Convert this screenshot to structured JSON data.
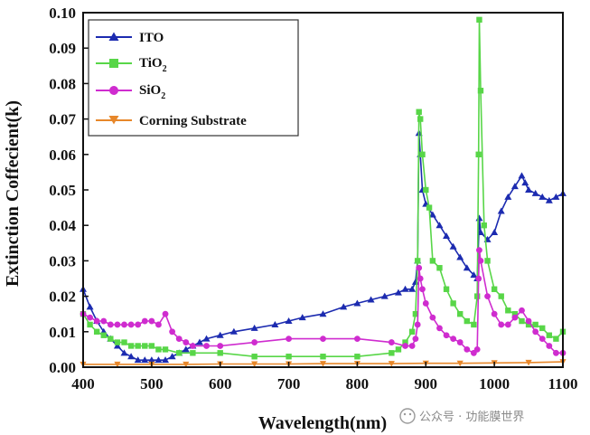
{
  "watermark": "公众号 · 功能膜世界",
  "chart_data": {
    "type": "line",
    "title": "",
    "xlabel": "Wavelength(nm)",
    "ylabel": "Extinction Coffecient(k)",
    "xlim": [
      400,
      1100
    ],
    "ylim": [
      0,
      0.1
    ],
    "xticks": [
      400,
      500,
      600,
      700,
      800,
      900,
      1000,
      1100
    ],
    "yticks": [
      0.0,
      0.01,
      0.02,
      0.03,
      0.04,
      0.05,
      0.06,
      0.07,
      0.08,
      0.09,
      0.1
    ],
    "ytick_labels": [
      "0.00",
      "0.01",
      "0.02",
      "0.03",
      "0.04",
      "0.05",
      "0.06",
      "0.07",
      "0.08",
      "0.09",
      "0.10"
    ],
    "legend_position": "top-left",
    "series": [
      {
        "name": "ITO",
        "label_main": "ITO",
        "label_sub": "",
        "color": "#1c2bb0",
        "marker": "triangle-up",
        "x": [
          400,
          410,
          420,
          430,
          440,
          450,
          460,
          470,
          480,
          490,
          500,
          510,
          520,
          530,
          540,
          550,
          560,
          570,
          580,
          600,
          620,
          650,
          680,
          700,
          720,
          750,
          780,
          800,
          820,
          840,
          860,
          870,
          880,
          885,
          888,
          890,
          892,
          895,
          900,
          910,
          920,
          930,
          940,
          950,
          960,
          970,
          975,
          978,
          980,
          990,
          1000,
          1010,
          1020,
          1030,
          1040,
          1045,
          1050,
          1060,
          1070,
          1080,
          1090,
          1100
        ],
        "y": [
          0.022,
          0.017,
          0.013,
          0.01,
          0.008,
          0.006,
          0.004,
          0.003,
          0.002,
          0.002,
          0.002,
          0.002,
          0.002,
          0.003,
          0.004,
          0.005,
          0.006,
          0.007,
          0.008,
          0.009,
          0.01,
          0.011,
          0.012,
          0.013,
          0.014,
          0.015,
          0.017,
          0.018,
          0.019,
          0.02,
          0.021,
          0.022,
          0.022,
          0.024,
          0.03,
          0.066,
          0.06,
          0.05,
          0.046,
          0.043,
          0.04,
          0.037,
          0.034,
          0.031,
          0.028,
          0.026,
          0.025,
          0.042,
          0.038,
          0.036,
          0.038,
          0.044,
          0.048,
          0.051,
          0.054,
          0.052,
          0.05,
          0.049,
          0.048,
          0.047,
          0.048,
          0.049
        ]
      },
      {
        "name": "TiO2",
        "label_main": "TiO",
        "label_sub": "2",
        "color": "#58d648",
        "marker": "square",
        "x": [
          400,
          410,
          420,
          430,
          440,
          450,
          460,
          470,
          480,
          490,
          500,
          510,
          520,
          540,
          560,
          600,
          650,
          700,
          750,
          800,
          850,
          860,
          870,
          880,
          885,
          888,
          890,
          892,
          895,
          900,
          905,
          910,
          920,
          930,
          940,
          950,
          960,
          970,
          975,
          977,
          978,
          980,
          985,
          990,
          1000,
          1010,
          1020,
          1030,
          1040,
          1050,
          1060,
          1070,
          1080,
          1090,
          1100
        ],
        "y": [
          0.015,
          0.012,
          0.01,
          0.009,
          0.008,
          0.007,
          0.007,
          0.006,
          0.006,
          0.006,
          0.006,
          0.005,
          0.005,
          0.004,
          0.004,
          0.004,
          0.003,
          0.003,
          0.003,
          0.003,
          0.004,
          0.005,
          0.007,
          0.01,
          0.015,
          0.03,
          0.072,
          0.07,
          0.06,
          0.05,
          0.045,
          0.03,
          0.028,
          0.022,
          0.018,
          0.015,
          0.013,
          0.012,
          0.02,
          0.06,
          0.098,
          0.078,
          0.04,
          0.03,
          0.022,
          0.02,
          0.016,
          0.015,
          0.013,
          0.012,
          0.012,
          0.011,
          0.009,
          0.008,
          0.01
        ]
      },
      {
        "name": "SiO2",
        "label_main": "SiO",
        "label_sub": "2",
        "color": "#cf2ccf",
        "marker": "circle",
        "x": [
          400,
          410,
          420,
          430,
          440,
          450,
          460,
          470,
          480,
          490,
          500,
          510,
          520,
          530,
          540,
          550,
          560,
          580,
          600,
          650,
          700,
          750,
          800,
          850,
          870,
          880,
          885,
          888,
          890,
          892,
          895,
          900,
          910,
          920,
          930,
          940,
          950,
          960,
          970,
          975,
          977,
          978,
          980,
          990,
          1000,
          1010,
          1020,
          1030,
          1040,
          1050,
          1060,
          1070,
          1080,
          1090,
          1100
        ],
        "y": [
          0.015,
          0.014,
          0.013,
          0.013,
          0.012,
          0.012,
          0.012,
          0.012,
          0.012,
          0.013,
          0.013,
          0.012,
          0.015,
          0.01,
          0.008,
          0.007,
          0.006,
          0.006,
          0.006,
          0.007,
          0.008,
          0.008,
          0.008,
          0.007,
          0.006,
          0.006,
          0.008,
          0.012,
          0.028,
          0.025,
          0.022,
          0.018,
          0.014,
          0.011,
          0.009,
          0.008,
          0.007,
          0.005,
          0.004,
          0.005,
          0.025,
          0.033,
          0.03,
          0.02,
          0.015,
          0.012,
          0.012,
          0.014,
          0.016,
          0.013,
          0.01,
          0.008,
          0.006,
          0.004,
          0.004
        ]
      },
      {
        "name": "Corning Substrate",
        "label_main": "Corning Substrate",
        "label_sub": "",
        "color": "#e7872a",
        "marker": "triangle-down",
        "x": [
          400,
          450,
          500,
          550,
          600,
          650,
          700,
          750,
          800,
          850,
          900,
          950,
          1000,
          1050,
          1100
        ],
        "y": [
          0.0008,
          0.0008,
          0.0008,
          0.0008,
          0.0009,
          0.0009,
          0.0009,
          0.001,
          0.001,
          0.001,
          0.0011,
          0.0011,
          0.0012,
          0.0013,
          0.0015
        ]
      }
    ]
  }
}
